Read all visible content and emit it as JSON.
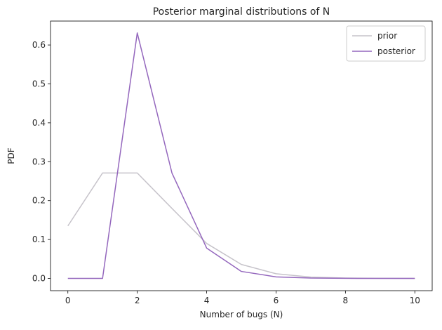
{
  "chart_data": {
    "type": "line",
    "title": "Posterior marginal distributions of N",
    "xlabel": "Number of bugs (N)",
    "ylabel": "PDF",
    "xlim": [
      -0.5,
      10.5
    ],
    "ylim": [
      -0.0315,
      0.6615
    ],
    "xticks": [
      0,
      2,
      4,
      6,
      8,
      10
    ],
    "yticks": [
      0.0,
      0.1,
      0.2,
      0.3,
      0.4,
      0.5,
      0.6
    ],
    "ytick_labels": [
      "0.0",
      "0.1",
      "0.2",
      "0.3",
      "0.4",
      "0.5",
      "0.6"
    ],
    "grid": false,
    "legend_position": "top-right",
    "x": [
      0,
      1,
      2,
      3,
      4,
      5,
      6,
      7,
      8,
      9,
      10
    ],
    "series": [
      {
        "name": "prior",
        "color": "#c6c3ca",
        "values": [
          0.135,
          0.271,
          0.271,
          0.18,
          0.09,
          0.036,
          0.012,
          0.0034,
          0.0009,
          0.0002,
          0.0
        ]
      },
      {
        "name": "posterior",
        "color": "#9467bd",
        "values": [
          0.0,
          0.0,
          0.631,
          0.271,
          0.078,
          0.018,
          0.004,
          0.001,
          0.0002,
          0.0,
          0.0
        ]
      }
    ]
  }
}
